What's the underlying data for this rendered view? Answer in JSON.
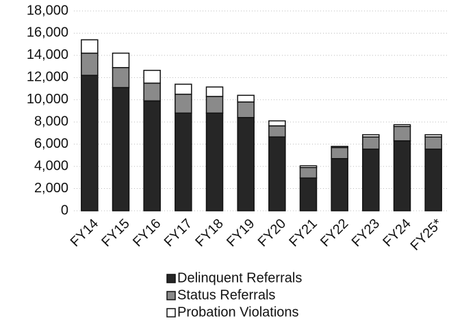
{
  "chart_data": {
    "type": "stacked_bar",
    "categories": [
      "FY14",
      "FY15",
      "FY16",
      "FY17",
      "FY18",
      "FY19",
      "FY20",
      "FY21",
      "FY22",
      "FY23",
      "FY24",
      "FY25*"
    ],
    "series": [
      {
        "name": "Delinquent Referrals",
        "color": "#262626",
        "values": [
          12200,
          11100,
          9900,
          8800,
          8800,
          8400,
          6650,
          2950,
          4700,
          5550,
          6300,
          5550
        ]
      },
      {
        "name": "Status Referrals",
        "color": "#8a8a8a",
        "values": [
          2000,
          1800,
          1600,
          1700,
          1500,
          1400,
          1000,
          950,
          1000,
          1100,
          1300,
          1100
        ]
      },
      {
        "name": "Probation Violations",
        "color": "#ffffff",
        "values": [
          1200,
          1300,
          1150,
          900,
          850,
          600,
          450,
          150,
          100,
          200,
          150,
          200
        ]
      }
    ],
    "ylim": [
      0,
      18000
    ],
    "yticks": [
      0,
      {
        "value": 2000,
        "label": "2,000"
      },
      {
        "value": 4000,
        "label": "4,000"
      },
      {
        "value": 6000,
        "label": "6,000"
      },
      {
        "value": 8000,
        "label": "8,000"
      },
      {
        "value": 10000,
        "label": "10,000"
      },
      {
        "value": 12000,
        "label": "12,000"
      },
      {
        "value": 14000,
        "label": "14,000"
      },
      {
        "value": 16000,
        "label": "16,000"
      },
      {
        "value": 18000,
        "label": "18,000"
      }
    ],
    "grid": true
  }
}
